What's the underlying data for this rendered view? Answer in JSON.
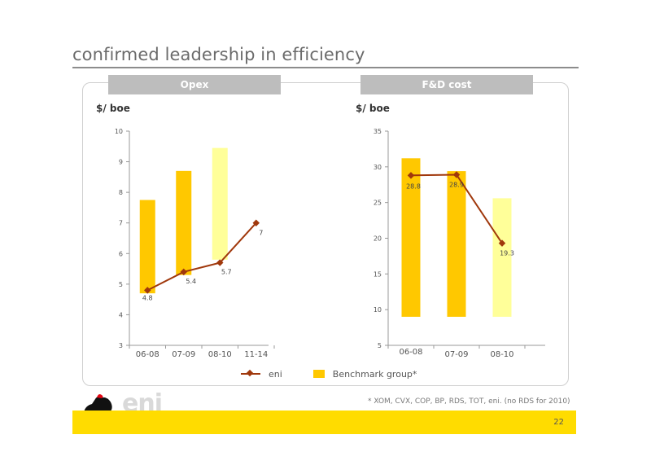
{
  "title": "confirmed leadership in efficiency",
  "charts": {
    "opex_header": "Opex",
    "fd_header": "F&D cost",
    "opex_unit": "$/ boe",
    "fd_unit": "$/ boe"
  },
  "chart_data": [
    {
      "type": "bar",
      "name": "Opex",
      "categories": [
        "06-08",
        "07-09",
        "08-10",
        "11-14"
      ],
      "yticks": [
        3,
        4,
        5,
        6,
        7,
        8,
        9,
        10
      ],
      "ylim": [
        3,
        10
      ],
      "benchmark_ranges": [
        [
          4.7,
          7.75
        ],
        [
          5.3,
          8.7
        ],
        [
          5.8,
          9.45
        ],
        null
      ],
      "benchmark_colors": [
        "#ffc800",
        "#ffc800",
        "#ffff99",
        null
      ],
      "eni": [
        4.8,
        5.4,
        5.7,
        7
      ],
      "eni_labels": [
        "4.8",
        "5.4",
        "5.7",
        "7"
      ]
    },
    {
      "type": "bar",
      "name": "F&D cost",
      "categories": [
        "06-08",
        "07-09",
        "08-10"
      ],
      "yticks": [
        5,
        10,
        15,
        20,
        25,
        30,
        35
      ],
      "ylim": [
        5,
        35
      ],
      "benchmark_ranges": [
        [
          9,
          31.2
        ],
        [
          9,
          29.4
        ],
        [
          9,
          25.6
        ]
      ],
      "benchmark_colors": [
        "#ffc800",
        "#ffc800",
        "#ffff99"
      ],
      "eni": [
        28.8,
        28.9,
        19.3
      ],
      "eni_labels": [
        "28.8",
        "28.9",
        "19.3"
      ]
    }
  ],
  "legend": {
    "eni": "eni",
    "benchmark": "Benchmark group*"
  },
  "footnote": "*  XOM, CVX, COP, BP, RDS, TOT, eni. (no RDS for 2010)",
  "logo_text": "eni",
  "page_number": "22",
  "colors": {
    "line": "#a0380c",
    "bar_main": "#ffc800",
    "bar_light": "#ffff99",
    "band": "#ffdc00"
  }
}
